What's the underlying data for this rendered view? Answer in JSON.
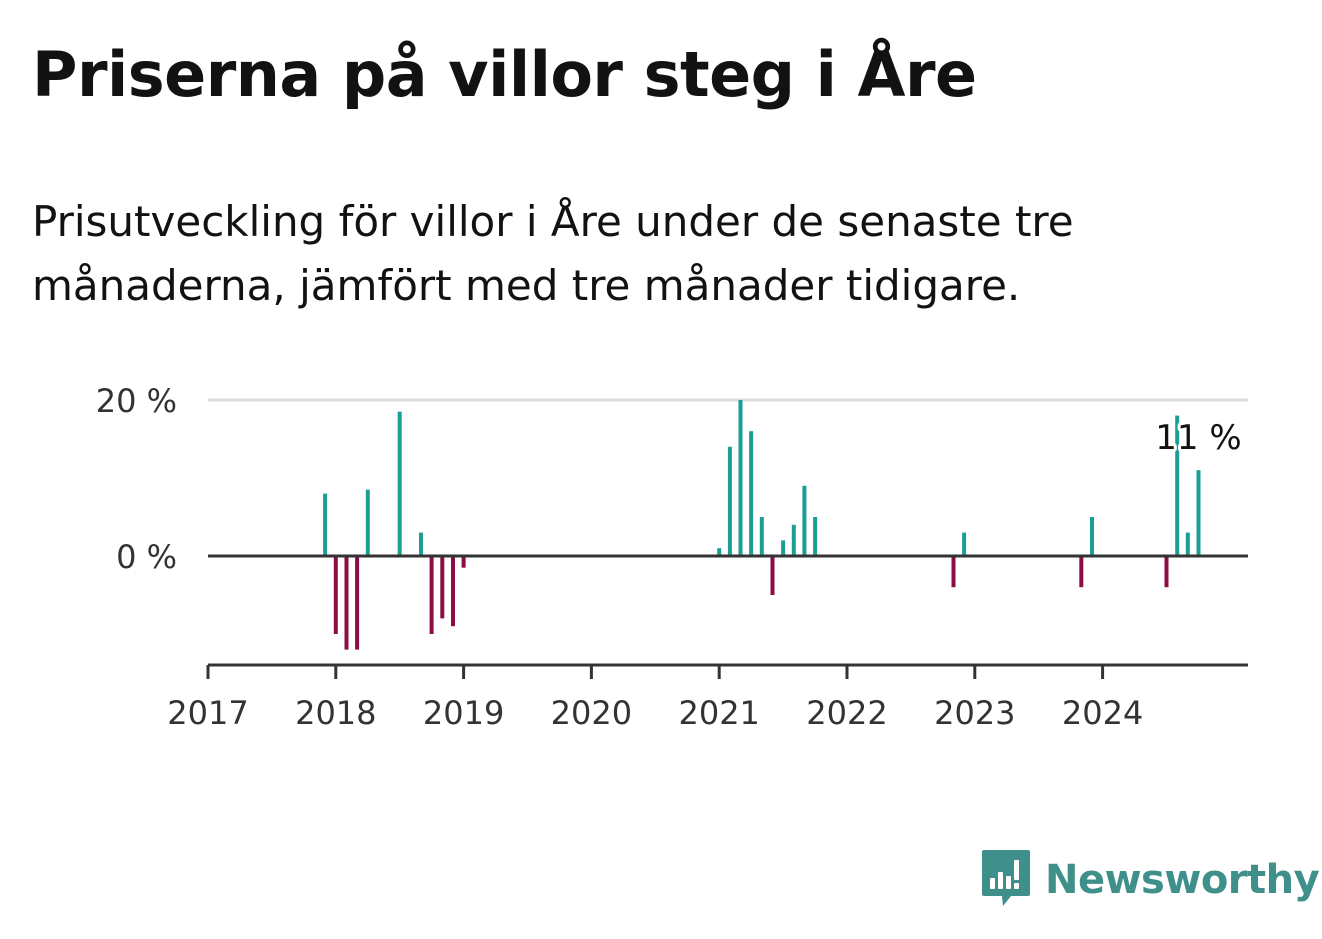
{
  "header": {
    "title": "Priserna på villor steg i Åre",
    "subtitle_line1": "Prisutveckling för villor i Åre under de senaste tre",
    "subtitle_line2": "månaderna, jämfört med tre månader tidigare."
  },
  "brand": {
    "name": "Newsworthy",
    "logo_icon": "bar-chart-speech-bubble-icon",
    "color": "#3f8f8a"
  },
  "colors": {
    "positive": "#1a9e96",
    "negative": "#8c0d45",
    "axis": "#333333",
    "grid": "#dddddd"
  },
  "chart_data": {
    "type": "bar",
    "xlabel": "",
    "ylabel": "",
    "ylim": [
      -14,
      20
    ],
    "xlim": [
      "2017-01",
      "2024-12"
    ],
    "y_ticks": [
      {
        "value": 20,
        "label": "20 %"
      },
      {
        "value": 0,
        "label": "0 %"
      }
    ],
    "x_ticks": [
      "2017",
      "2018",
      "2019",
      "2020",
      "2021",
      "2022",
      "2023",
      "2024"
    ],
    "grid": true,
    "legend": "none",
    "annotation": {
      "text": "11 %",
      "x": "2024-10"
    },
    "x": [
      "2017-12",
      "2018-01",
      "2018-02",
      "2018-03",
      "2018-04",
      "2018-07",
      "2018-09",
      "2018-10",
      "2018-11",
      "2018-12",
      "2019-01",
      "2021-01",
      "2021-02",
      "2021-03",
      "2021-04",
      "2021-05",
      "2021-06",
      "2021-07",
      "2021-08",
      "2021-09",
      "2021-10",
      "2022-11",
      "2022-12",
      "2023-11",
      "2023-12",
      "2024-07",
      "2024-08",
      "2024-09",
      "2024-10"
    ],
    "values": [
      8,
      -10,
      -12,
      -12,
      8.5,
      18.5,
      3,
      -10,
      -8,
      -9,
      -1.5,
      1,
      14,
      20,
      16,
      5,
      -5,
      2,
      4,
      9,
      5,
      -4,
      3,
      -4,
      5,
      -4,
      18,
      3,
      11
    ]
  }
}
